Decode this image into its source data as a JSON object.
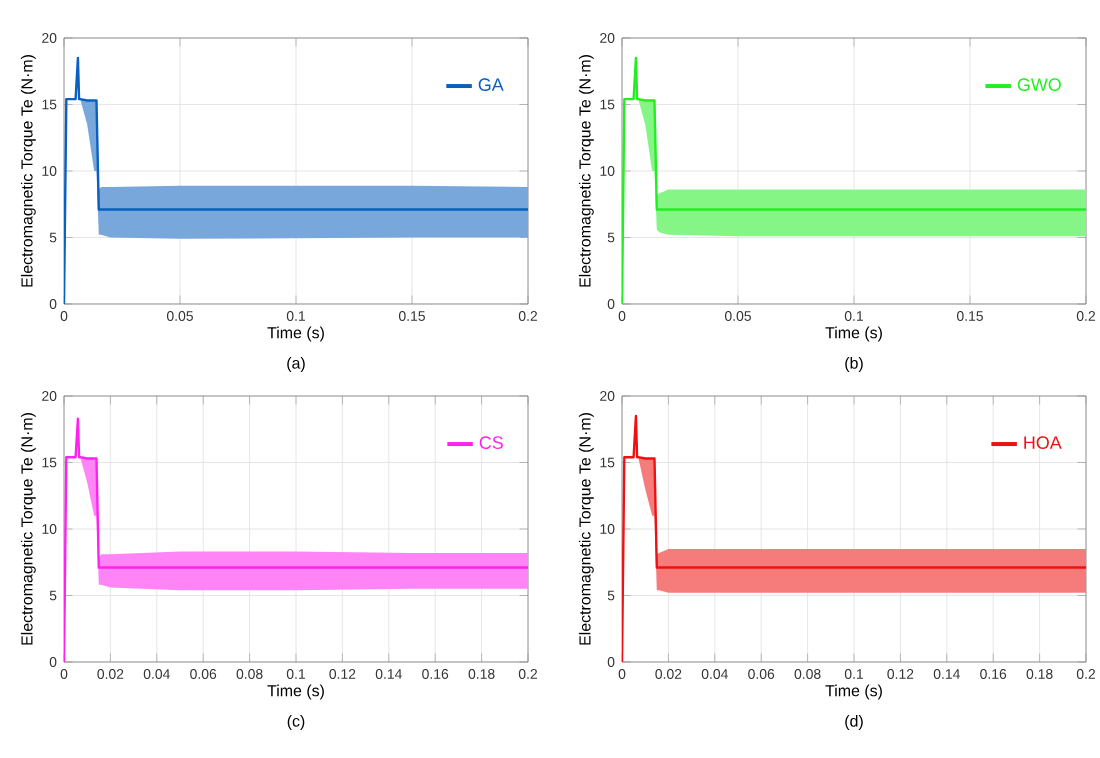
{
  "chart_data": [
    {
      "type": "line",
      "xlabel": "Time (s)",
      "ylabel": "Electromagnetic Torque Te (N·m)",
      "annotations": [
        "(a)"
      ],
      "xlim": [
        0,
        0.2
      ],
      "ylim": [
        0,
        20
      ],
      "xticks": [
        0,
        0.05,
        0.1,
        0.15,
        0.2
      ],
      "yticks": [
        0,
        5,
        10,
        15,
        20
      ],
      "grid": true,
      "legend": "top right",
      "series": [
        {
          "name": "GA",
          "color": "#0a5fc0",
          "x": [
            0,
            0.001,
            0.002,
            0.005,
            0.006,
            0.0065,
            0.007,
            0.01,
            0.013,
            0.014,
            0.015,
            0.016,
            0.02,
            0.05,
            0.15,
            0.2
          ],
          "values": [
            0,
            15.4,
            15.4,
            15.4,
            18.5,
            15.4,
            15.4,
            15.3,
            15.3,
            15.3,
            7.1,
            7.1,
            7.1,
            7.1,
            7.1,
            7.1
          ],
          "lower": [
            0,
            15.4,
            15.4,
            15.4,
            18.5,
            15.4,
            15.4,
            13.5,
            10,
            10,
            5.2,
            5.2,
            5,
            4.9,
            5,
            5
          ],
          "upper": [
            0,
            15.4,
            15.4,
            15.4,
            18.5,
            15.4,
            15.4,
            15.3,
            15.3,
            15.3,
            8.6,
            8.8,
            8.8,
            8.9,
            8.9,
            8.8
          ]
        }
      ]
    },
    {
      "type": "line",
      "xlabel": "Time (s)",
      "ylabel": "Electromagnetic Torque Te (N·m)",
      "annotations": [
        "(b)"
      ],
      "xlim": [
        0,
        0.2
      ],
      "ylim": [
        0,
        20
      ],
      "xticks": [
        0,
        0.05,
        0.1,
        0.15,
        0.2
      ],
      "yticks": [
        0,
        5,
        10,
        15,
        20
      ],
      "grid": true,
      "legend": "top right",
      "series": [
        {
          "name": "GWO",
          "color": "#22ee22",
          "x": [
            0,
            0.001,
            0.002,
            0.005,
            0.006,
            0.0065,
            0.007,
            0.01,
            0.013,
            0.014,
            0.015,
            0.016,
            0.02,
            0.05,
            0.1,
            0.15,
            0.2
          ],
          "values": [
            0,
            15.4,
            15.4,
            15.4,
            18.5,
            15.4,
            15.4,
            15.3,
            15.3,
            15.3,
            7.1,
            7.1,
            7.1,
            7.1,
            7.1,
            7.1,
            7.1
          ],
          "lower": [
            0,
            15.4,
            15.4,
            15.4,
            18.5,
            15.4,
            15.4,
            13.5,
            10,
            10,
            5.6,
            5.4,
            5.2,
            5.1,
            5.1,
            5.1,
            5.1
          ],
          "upper": [
            0,
            15.4,
            15.4,
            15.4,
            18.5,
            15.4,
            15.4,
            15.3,
            15.3,
            15.3,
            8.2,
            8.3,
            8.6,
            8.6,
            8.6,
            8.6,
            8.6
          ]
        }
      ]
    },
    {
      "type": "line",
      "xlabel": "Time (s)",
      "ylabel": "Electromagnetic Torque Te (N·m)",
      "annotations": [
        "(c)"
      ],
      "xlim": [
        0,
        0.2
      ],
      "ylim": [
        0,
        20
      ],
      "xticks": [
        0,
        0.02,
        0.04,
        0.06,
        0.08,
        0.1,
        0.12,
        0.14,
        0.16,
        0.18,
        0.2
      ],
      "yticks": [
        0,
        5,
        10,
        15,
        20
      ],
      "grid": true,
      "legend": "top right",
      "series": [
        {
          "name": "CS",
          "color": "#ff22ee",
          "x": [
            0,
            0.001,
            0.002,
            0.005,
            0.006,
            0.0065,
            0.007,
            0.01,
            0.013,
            0.014,
            0.015,
            0.016,
            0.02,
            0.05,
            0.1,
            0.15,
            0.2
          ],
          "values": [
            0,
            15.4,
            15.4,
            15.4,
            18.3,
            15.4,
            15.4,
            15.3,
            15.3,
            15.3,
            7.1,
            7.1,
            7.1,
            7.1,
            7.1,
            7.1,
            7.1
          ],
          "lower": [
            0,
            15.4,
            15.4,
            15.4,
            18.3,
            15.4,
            15.4,
            13.5,
            11,
            11,
            5.8,
            5.8,
            5.6,
            5.4,
            5.4,
            5.5,
            5.5
          ],
          "upper": [
            0,
            15.4,
            15.4,
            15.4,
            18.3,
            15.4,
            15.4,
            15.3,
            15.3,
            15.3,
            7.8,
            8.1,
            8.1,
            8.3,
            8.3,
            8.2,
            8.2
          ]
        }
      ]
    },
    {
      "type": "line",
      "xlabel": "Time (s)",
      "ylabel": "Electromagnetic Torque Te (N·m)",
      "annotations": [
        "(d)"
      ],
      "xlim": [
        0,
        0.2
      ],
      "ylim": [
        0,
        20
      ],
      "xticks": [
        0,
        0.02,
        0.04,
        0.06,
        0.08,
        0.1,
        0.12,
        0.14,
        0.16,
        0.18,
        0.2
      ],
      "yticks": [
        0,
        5,
        10,
        15,
        20
      ],
      "grid": true,
      "legend": "top right",
      "series": [
        {
          "name": "HOA",
          "color": "#ee1111",
          "x": [
            0,
            0.001,
            0.002,
            0.005,
            0.006,
            0.0065,
            0.007,
            0.01,
            0.013,
            0.014,
            0.015,
            0.016,
            0.02,
            0.05,
            0.1,
            0.15,
            0.2
          ],
          "values": [
            0,
            15.4,
            15.4,
            15.4,
            18.5,
            15.4,
            15.4,
            15.3,
            15.3,
            15.3,
            7.1,
            7.1,
            7.1,
            7.1,
            7.1,
            7.1,
            7.1
          ],
          "lower": [
            0,
            15.4,
            15.4,
            15.4,
            18.5,
            15.4,
            15.4,
            13,
            11,
            11,
            5.4,
            5.4,
            5.2,
            5.2,
            5.2,
            5.2,
            5.2
          ],
          "upper": [
            0,
            15.4,
            15.4,
            15.4,
            18.5,
            15.4,
            15.4,
            15.3,
            15.3,
            15.3,
            8.1,
            8.2,
            8.5,
            8.5,
            8.5,
            8.5,
            8.5
          ]
        }
      ]
    }
  ]
}
